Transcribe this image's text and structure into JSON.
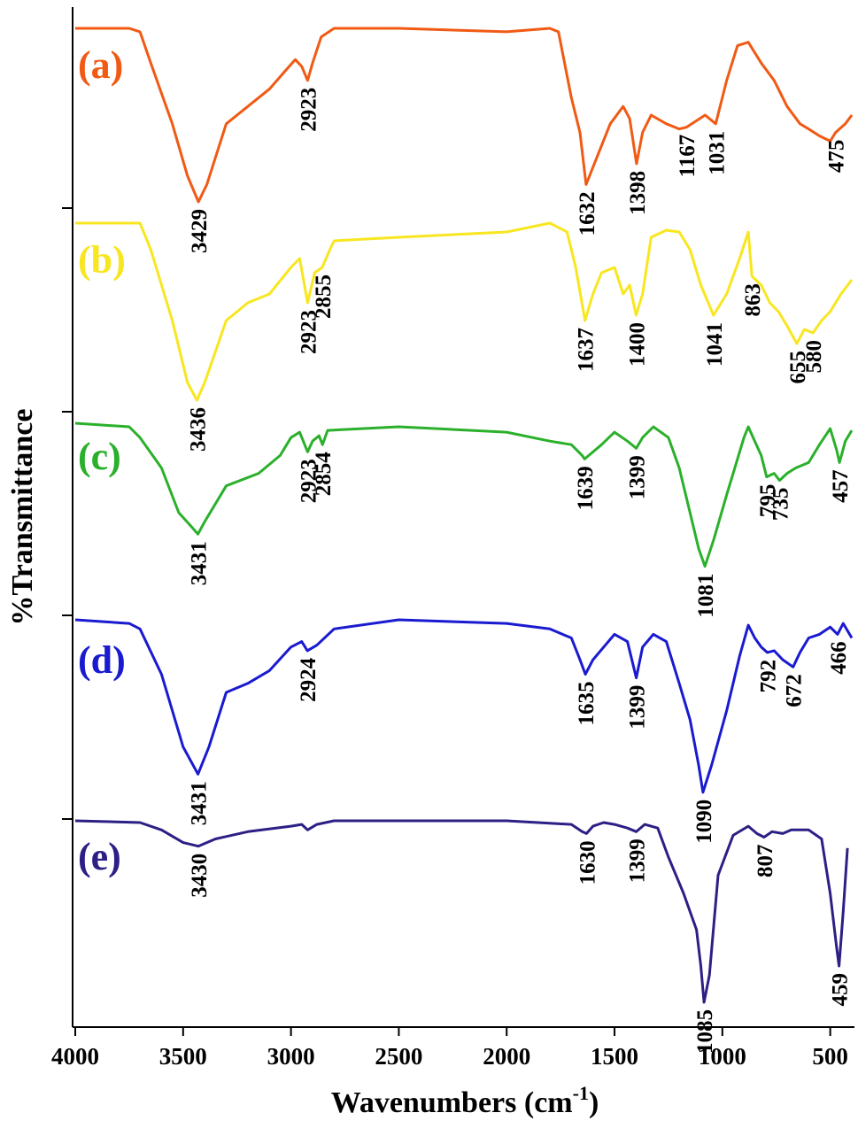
{
  "chart_data": {
    "type": "line",
    "title": "",
    "xlabel": "Wavenumbers (cm",
    "xlabel_sup": "-1",
    "xlabel_close": ")",
    "ylabel": "%Transmittance",
    "xlim": [
      4000,
      400
    ],
    "x_reversed": true,
    "xticks": [
      4000,
      3500,
      3000,
      2500,
      2000,
      1500,
      1000,
      500
    ],
    "yticks_labeled": false,
    "grid": false,
    "legend": "none",
    "series": [
      {
        "tag": "(a)",
        "color": "#f05a14",
        "points": [
          [
            4000,
            1.0
          ],
          [
            3750,
            1.0
          ],
          [
            3700,
            0.98
          ],
          [
            3650,
            0.8
          ],
          [
            3550,
            0.45
          ],
          [
            3480,
            0.15
          ],
          [
            3429,
            0.0
          ],
          [
            3390,
            0.1
          ],
          [
            3300,
            0.45
          ],
          [
            3200,
            0.55
          ],
          [
            3100,
            0.65
          ],
          [
            3030,
            0.75
          ],
          [
            2980,
            0.82
          ],
          [
            2950,
            0.78
          ],
          [
            2923,
            0.7
          ],
          [
            2900,
            0.8
          ],
          [
            2860,
            0.95
          ],
          [
            2800,
            1.0
          ],
          [
            2500,
            1.0
          ],
          [
            2000,
            0.98
          ],
          [
            1800,
            1.0
          ],
          [
            1760,
            0.98
          ],
          [
            1700,
            0.6
          ],
          [
            1660,
            0.4
          ],
          [
            1632,
            0.1
          ],
          [
            1600,
            0.2
          ],
          [
            1520,
            0.45
          ],
          [
            1460,
            0.55
          ],
          [
            1430,
            0.48
          ],
          [
            1398,
            0.22
          ],
          [
            1370,
            0.4
          ],
          [
            1330,
            0.5
          ],
          [
            1260,
            0.45
          ],
          [
            1200,
            0.42
          ],
          [
            1167,
            0.43
          ],
          [
            1080,
            0.5
          ],
          [
            1031,
            0.45
          ],
          [
            980,
            0.7
          ],
          [
            930,
            0.9
          ],
          [
            880,
            0.92
          ],
          [
            820,
            0.8
          ],
          [
            760,
            0.7
          ],
          [
            700,
            0.55
          ],
          [
            640,
            0.45
          ],
          [
            600,
            0.42
          ],
          [
            550,
            0.38
          ],
          [
            500,
            0.35
          ],
          [
            475,
            0.4
          ],
          [
            430,
            0.45
          ],
          [
            400,
            0.5
          ]
        ],
        "peaks": [
          3429,
          2923,
          1632,
          1398,
          1167,
          1031,
          475
        ]
      },
      {
        "tag": "(b)",
        "color": "#f8e620",
        "points": [
          [
            4000,
            1.0
          ],
          [
            3700,
            1.0
          ],
          [
            3650,
            0.85
          ],
          [
            3550,
            0.45
          ],
          [
            3480,
            0.1
          ],
          [
            3436,
            0.0
          ],
          [
            3400,
            0.1
          ],
          [
            3300,
            0.45
          ],
          [
            3200,
            0.55
          ],
          [
            3100,
            0.6
          ],
          [
            3000,
            0.75
          ],
          [
            2960,
            0.8
          ],
          [
            2923,
            0.55
          ],
          [
            2890,
            0.72
          ],
          [
            2855,
            0.75
          ],
          [
            2820,
            0.85
          ],
          [
            2800,
            0.9
          ],
          [
            2500,
            0.92
          ],
          [
            2000,
            0.95
          ],
          [
            1800,
            1.0
          ],
          [
            1720,
            0.95
          ],
          [
            1680,
            0.75
          ],
          [
            1637,
            0.45
          ],
          [
            1600,
            0.6
          ],
          [
            1560,
            0.72
          ],
          [
            1500,
            0.75
          ],
          [
            1460,
            0.6
          ],
          [
            1430,
            0.65
          ],
          [
            1400,
            0.48
          ],
          [
            1370,
            0.6
          ],
          [
            1330,
            0.92
          ],
          [
            1260,
            0.96
          ],
          [
            1200,
            0.95
          ],
          [
            1150,
            0.85
          ],
          [
            1100,
            0.65
          ],
          [
            1041,
            0.48
          ],
          [
            980,
            0.6
          ],
          [
            920,
            0.8
          ],
          [
            880,
            0.95
          ],
          [
            863,
            0.7
          ],
          [
            820,
            0.65
          ],
          [
            780,
            0.55
          ],
          [
            740,
            0.5
          ],
          [
            700,
            0.42
          ],
          [
            655,
            0.32
          ],
          [
            620,
            0.4
          ],
          [
            580,
            0.38
          ],
          [
            540,
            0.45
          ],
          [
            500,
            0.5
          ],
          [
            450,
            0.6
          ],
          [
            400,
            0.68
          ]
        ],
        "peaks": [
          3436,
          2923,
          2855,
          1637,
          1400,
          1041,
          863,
          655,
          580
        ]
      },
      {
        "tag": "(c)",
        "color": "#2bb02b",
        "points": [
          [
            4000,
            1.0
          ],
          [
            3750,
            0.98
          ],
          [
            3700,
            0.92
          ],
          [
            3600,
            0.75
          ],
          [
            3520,
            0.5
          ],
          [
            3460,
            0.42
          ],
          [
            3431,
            0.38
          ],
          [
            3400,
            0.45
          ],
          [
            3300,
            0.65
          ],
          [
            3150,
            0.72
          ],
          [
            3050,
            0.82
          ],
          [
            3000,
            0.92
          ],
          [
            2960,
            0.95
          ],
          [
            2923,
            0.84
          ],
          [
            2900,
            0.9
          ],
          [
            2870,
            0.93
          ],
          [
            2854,
            0.88
          ],
          [
            2830,
            0.96
          ],
          [
            2500,
            0.98
          ],
          [
            2000,
            0.95
          ],
          [
            1800,
            0.9
          ],
          [
            1700,
            0.88
          ],
          [
            1650,
            0.82
          ],
          [
            1639,
            0.8
          ],
          [
            1560,
            0.88
          ],
          [
            1500,
            0.95
          ],
          [
            1440,
            0.9
          ],
          [
            1399,
            0.86
          ],
          [
            1370,
            0.92
          ],
          [
            1320,
            0.98
          ],
          [
            1250,
            0.92
          ],
          [
            1200,
            0.75
          ],
          [
            1150,
            0.5
          ],
          [
            1110,
            0.3
          ],
          [
            1081,
            0.2
          ],
          [
            1040,
            0.35
          ],
          [
            980,
            0.6
          ],
          [
            930,
            0.8
          ],
          [
            900,
            0.92
          ],
          [
            880,
            0.98
          ],
          [
            850,
            0.9
          ],
          [
            820,
            0.82
          ],
          [
            795,
            0.7
          ],
          [
            760,
            0.72
          ],
          [
            735,
            0.68
          ],
          [
            700,
            0.72
          ],
          [
            660,
            0.75
          ],
          [
            600,
            0.78
          ],
          [
            550,
            0.88
          ],
          [
            500,
            0.97
          ],
          [
            470,
            0.85
          ],
          [
            457,
            0.78
          ],
          [
            430,
            0.9
          ],
          [
            400,
            0.96
          ]
        ],
        "peaks": [
          3431,
          2923,
          2854,
          1639,
          1399,
          1081,
          795,
          735,
          457
        ]
      },
      {
        "tag": "(d)",
        "color": "#1a1ad0",
        "points": [
          [
            4000,
            1.0
          ],
          [
            3750,
            0.98
          ],
          [
            3700,
            0.95
          ],
          [
            3600,
            0.7
          ],
          [
            3500,
            0.3
          ],
          [
            3431,
            0.15
          ],
          [
            3380,
            0.3
          ],
          [
            3300,
            0.6
          ],
          [
            3200,
            0.65
          ],
          [
            3100,
            0.72
          ],
          [
            3000,
            0.85
          ],
          [
            2950,
            0.88
          ],
          [
            2924,
            0.83
          ],
          [
            2880,
            0.86
          ],
          [
            2800,
            0.95
          ],
          [
            2500,
            1.0
          ],
          [
            2000,
            0.98
          ],
          [
            1800,
            0.95
          ],
          [
            1700,
            0.9
          ],
          [
            1660,
            0.78
          ],
          [
            1635,
            0.7
          ],
          [
            1600,
            0.78
          ],
          [
            1550,
            0.85
          ],
          [
            1500,
            0.92
          ],
          [
            1440,
            0.88
          ],
          [
            1399,
            0.68
          ],
          [
            1370,
            0.85
          ],
          [
            1320,
            0.92
          ],
          [
            1260,
            0.88
          ],
          [
            1200,
            0.65
          ],
          [
            1150,
            0.45
          ],
          [
            1110,
            0.2
          ],
          [
            1090,
            0.05
          ],
          [
            1050,
            0.2
          ],
          [
            980,
            0.5
          ],
          [
            920,
            0.8
          ],
          [
            880,
            0.97
          ],
          [
            850,
            0.9
          ],
          [
            820,
            0.85
          ],
          [
            792,
            0.82
          ],
          [
            760,
            0.83
          ],
          [
            720,
            0.78
          ],
          [
            672,
            0.74
          ],
          [
            640,
            0.82
          ],
          [
            600,
            0.9
          ],
          [
            550,
            0.92
          ],
          [
            500,
            0.96
          ],
          [
            466,
            0.92
          ],
          [
            440,
            0.98
          ],
          [
            400,
            0.9
          ]
        ],
        "peaks": [
          3431,
          2924,
          1635,
          1399,
          1090,
          792,
          672,
          466
        ]
      },
      {
        "tag": "(e)",
        "color": "#2c1f85",
        "points": [
          [
            4000,
            1.0
          ],
          [
            3700,
            0.99
          ],
          [
            3600,
            0.95
          ],
          [
            3500,
            0.88
          ],
          [
            3430,
            0.86
          ],
          [
            3350,
            0.9
          ],
          [
            3200,
            0.94
          ],
          [
            3000,
            0.97
          ],
          [
            2950,
            0.98
          ],
          [
            2923,
            0.95
          ],
          [
            2880,
            0.98
          ],
          [
            2800,
            1.0
          ],
          [
            2000,
            1.0
          ],
          [
            1700,
            0.98
          ],
          [
            1650,
            0.94
          ],
          [
            1630,
            0.93
          ],
          [
            1600,
            0.97
          ],
          [
            1550,
            0.99
          ],
          [
            1500,
            0.98
          ],
          [
            1440,
            0.96
          ],
          [
            1399,
            0.94
          ],
          [
            1360,
            0.98
          ],
          [
            1300,
            0.96
          ],
          [
            1250,
            0.8
          ],
          [
            1180,
            0.6
          ],
          [
            1120,
            0.4
          ],
          [
            1100,
            0.2
          ],
          [
            1085,
            0.0
          ],
          [
            1060,
            0.15
          ],
          [
            1020,
            0.7
          ],
          [
            950,
            0.92
          ],
          [
            880,
            0.97
          ],
          [
            840,
            0.93
          ],
          [
            807,
            0.91
          ],
          [
            770,
            0.94
          ],
          [
            720,
            0.93
          ],
          [
            680,
            0.95
          ],
          [
            600,
            0.95
          ],
          [
            540,
            0.9
          ],
          [
            500,
            0.6
          ],
          [
            470,
            0.3
          ],
          [
            459,
            0.2
          ],
          [
            440,
            0.5
          ],
          [
            420,
            0.85
          ]
        ],
        "peaks": [
          3430,
          1630,
          1399,
          1085,
          807,
          459
        ]
      }
    ]
  }
}
